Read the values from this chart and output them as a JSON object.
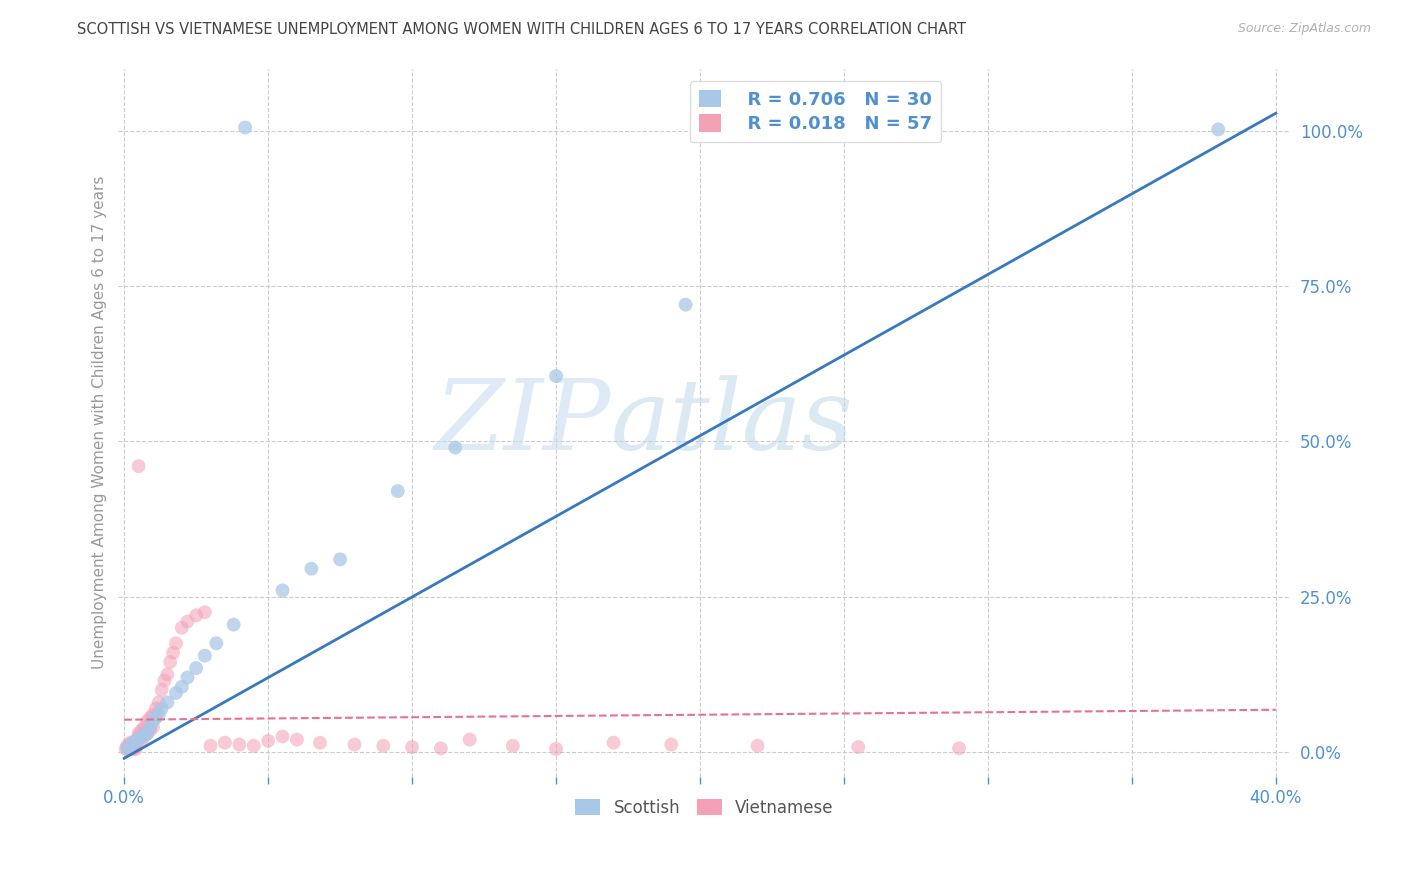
{
  "title": "SCOTTISH VS VIETNAMESE UNEMPLOYMENT AMONG WOMEN WITH CHILDREN AGES 6 TO 17 YEARS CORRELATION CHART",
  "source": "Source: ZipAtlas.com",
  "ylabel": "Unemployment Among Women with Children Ages 6 to 17 years",
  "xlim": [
    -0.002,
    0.405
  ],
  "ylim": [
    -0.04,
    1.1
  ],
  "xtick_positions": [
    0.0,
    0.05,
    0.1,
    0.15,
    0.2,
    0.25,
    0.3,
    0.35,
    0.4
  ],
  "xticklabels": [
    "0.0%",
    "",
    "",
    "",
    "",
    "",
    "",
    "",
    "40.0%"
  ],
  "ytick_positions": [
    0.0,
    0.25,
    0.5,
    0.75,
    1.0
  ],
  "yticklabels_right": [
    "0.0%",
    "25.0%",
    "50.0%",
    "75.0%",
    "100.0%"
  ],
  "watermark_zip": "ZIP",
  "watermark_atlas": "atlas",
  "blue_color": "#a8c8e8",
  "pink_color": "#f4a0b5",
  "blue_line_color": "#3878c0",
  "pink_line_color": "#e87090",
  "title_color": "#444444",
  "right_axis_color": "#5090d0",
  "bottom_axis_color": "#5090d0",
  "scatter_blue_alpha": 0.75,
  "scatter_pink_alpha": 0.55,
  "scatter_size": 100,
  "grid_color": "#cccccc",
  "background_color": "#ffffff",
  "scottish_x": [
    0.001,
    0.002,
    0.003,
    0.004,
    0.005,
    0.006,
    0.007,
    0.008,
    0.009,
    0.01,
    0.011,
    0.012,
    0.013,
    0.015,
    0.018,
    0.02,
    0.022,
    0.025,
    0.028,
    0.032,
    0.038,
    0.055,
    0.065,
    0.075,
    0.095,
    0.115,
    0.15,
    0.195,
    0.042,
    0.38
  ],
  "scottish_y": [
    0.005,
    0.01,
    0.015,
    0.018,
    0.02,
    0.025,
    0.028,
    0.03,
    0.04,
    0.05,
    0.055,
    0.06,
    0.07,
    0.08,
    0.095,
    0.105,
    0.12,
    0.135,
    0.155,
    0.175,
    0.205,
    0.26,
    0.295,
    0.31,
    0.42,
    0.49,
    0.605,
    0.72,
    1.005,
    1.002
  ],
  "vietnamese_x": [
    0.0005,
    0.001,
    0.0015,
    0.002,
    0.002,
    0.0025,
    0.003,
    0.003,
    0.0035,
    0.004,
    0.004,
    0.0045,
    0.005,
    0.005,
    0.006,
    0.006,
    0.007,
    0.007,
    0.008,
    0.008,
    0.009,
    0.009,
    0.01,
    0.01,
    0.011,
    0.012,
    0.013,
    0.014,
    0.015,
    0.016,
    0.017,
    0.018,
    0.02,
    0.022,
    0.025,
    0.028,
    0.03,
    0.035,
    0.04,
    0.045,
    0.05,
    0.055,
    0.06,
    0.068,
    0.08,
    0.09,
    0.1,
    0.11,
    0.12,
    0.135,
    0.15,
    0.17,
    0.19,
    0.22,
    0.255,
    0.29,
    0.005
  ],
  "vietnamese_y": [
    0.005,
    0.01,
    0.005,
    0.01,
    0.015,
    0.005,
    0.01,
    0.015,
    0.005,
    0.005,
    0.01,
    0.02,
    0.025,
    0.03,
    0.02,
    0.035,
    0.025,
    0.04,
    0.03,
    0.05,
    0.035,
    0.055,
    0.04,
    0.06,
    0.07,
    0.08,
    0.1,
    0.115,
    0.125,
    0.145,
    0.16,
    0.175,
    0.2,
    0.21,
    0.22,
    0.225,
    0.01,
    0.015,
    0.012,
    0.01,
    0.018,
    0.025,
    0.02,
    0.015,
    0.012,
    0.01,
    0.008,
    0.006,
    0.02,
    0.01,
    0.005,
    0.015,
    0.012,
    0.01,
    0.008,
    0.006,
    0.46
  ]
}
